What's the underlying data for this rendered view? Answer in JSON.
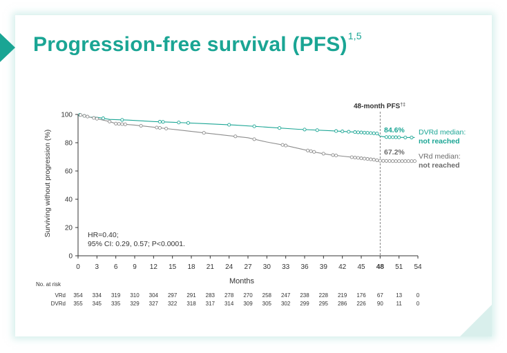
{
  "title": "Progression-free survival (PFS)",
  "title_refs": "1,5",
  "colors": {
    "accent": "#1aa594",
    "dvrd": "#1aa594",
    "vrd": "#8c8c8c",
    "text": "#333333"
  },
  "chart_data": {
    "type": "line",
    "title": "",
    "xlabel": "Months",
    "ylabel": "Surviving without progression (%)",
    "xlim": [
      0,
      54
    ],
    "ylim": [
      0,
      100
    ],
    "x_ticks": [
      0,
      3,
      6,
      9,
      12,
      15,
      18,
      21,
      24,
      27,
      30,
      33,
      36,
      39,
      42,
      45,
      48,
      51,
      54
    ],
    "y_ticks": [
      0,
      20,
      40,
      60,
      80,
      100
    ],
    "highlight_tick": 48,
    "grid": false,
    "series": [
      {
        "name": "DVRd",
        "x": [
          0,
          1,
          2,
          3,
          5,
          8,
          12,
          15,
          20,
          25,
          30,
          35,
          40,
          42,
          44,
          46,
          47.5,
          48,
          49,
          52,
          53.5
        ],
        "y": [
          100,
          99,
          98,
          98,
          96.5,
          96,
          95,
          94.5,
          93.5,
          92.5,
          91,
          89.5,
          88.5,
          88,
          87.5,
          87,
          86.5,
          84.6,
          84,
          83.7,
          83.7
        ],
        "censor_x": [
          0.3,
          1,
          4,
          7,
          13,
          13.5,
          16,
          17.5,
          24,
          28,
          32,
          36,
          38,
          41,
          42,
          43,
          44,
          44.5,
          45,
          45.5,
          46,
          46.5,
          47,
          47.5,
          49,
          49.5,
          50,
          50.5,
          51,
          52,
          53
        ]
      },
      {
        "name": "VRd",
        "x": [
          0,
          1,
          2,
          3,
          5,
          6,
          9,
          12,
          15,
          18,
          21,
          24,
          27,
          30,
          33,
          36,
          38,
          40,
          42,
          44,
          45,
          46,
          47,
          48,
          50,
          53.5
        ],
        "y": [
          100,
          99,
          98,
          97,
          95,
          93.5,
          92.5,
          91,
          89.5,
          88,
          86.5,
          85,
          83.5,
          80.5,
          78,
          75,
          73,
          71.5,
          70.5,
          69.5,
          69,
          68.5,
          68,
          67.2,
          67,
          67
        ],
        "censor_x": [
          0.4,
          1,
          1.5,
          2.5,
          3,
          5,
          6,
          6.5,
          7,
          7.5,
          10,
          12.5,
          13,
          14,
          20,
          25,
          28,
          32.5,
          33,
          36.5,
          37,
          37.5,
          39,
          40.5,
          41,
          43.5,
          44,
          44.5,
          45,
          45.5,
          46,
          46.5,
          47,
          47.5,
          48,
          48.5,
          49,
          49.5,
          50,
          50.5,
          51,
          51.5,
          52,
          52.5,
          53,
          53.5
        ]
      }
    ],
    "annotations": {
      "pfs48_label": "48-month PFS",
      "pfs48_sup": "†‡",
      "dvrd_pct": "84.6%",
      "vrd_pct": "67.2%",
      "dvrd_median_line1": "DVRd median:",
      "dvrd_median_line2": "not reached",
      "vrd_median_line1": "VRd median:",
      "vrd_median_line2": "not reached",
      "hr_line1": "HR=0.40;",
      "hr_line2": "95% CI: 0.29, 0.57; P<0.0001."
    },
    "at_risk": {
      "header": "No. at risk",
      "rows": [
        {
          "label": "VRd",
          "values": [
            "354",
            "334",
            "319",
            "310",
            "304",
            "297",
            "291",
            "283",
            "278",
            "270",
            "258",
            "247",
            "238",
            "228",
            "219",
            "176",
            "67",
            "13",
            "0"
          ]
        },
        {
          "label": "DVRd",
          "values": [
            "355",
            "345",
            "335",
            "329",
            "327",
            "322",
            "318",
            "317",
            "314",
            "309",
            "305",
            "302",
            "299",
            "295",
            "286",
            "226",
            "90",
            "11",
            "0"
          ]
        }
      ]
    }
  }
}
